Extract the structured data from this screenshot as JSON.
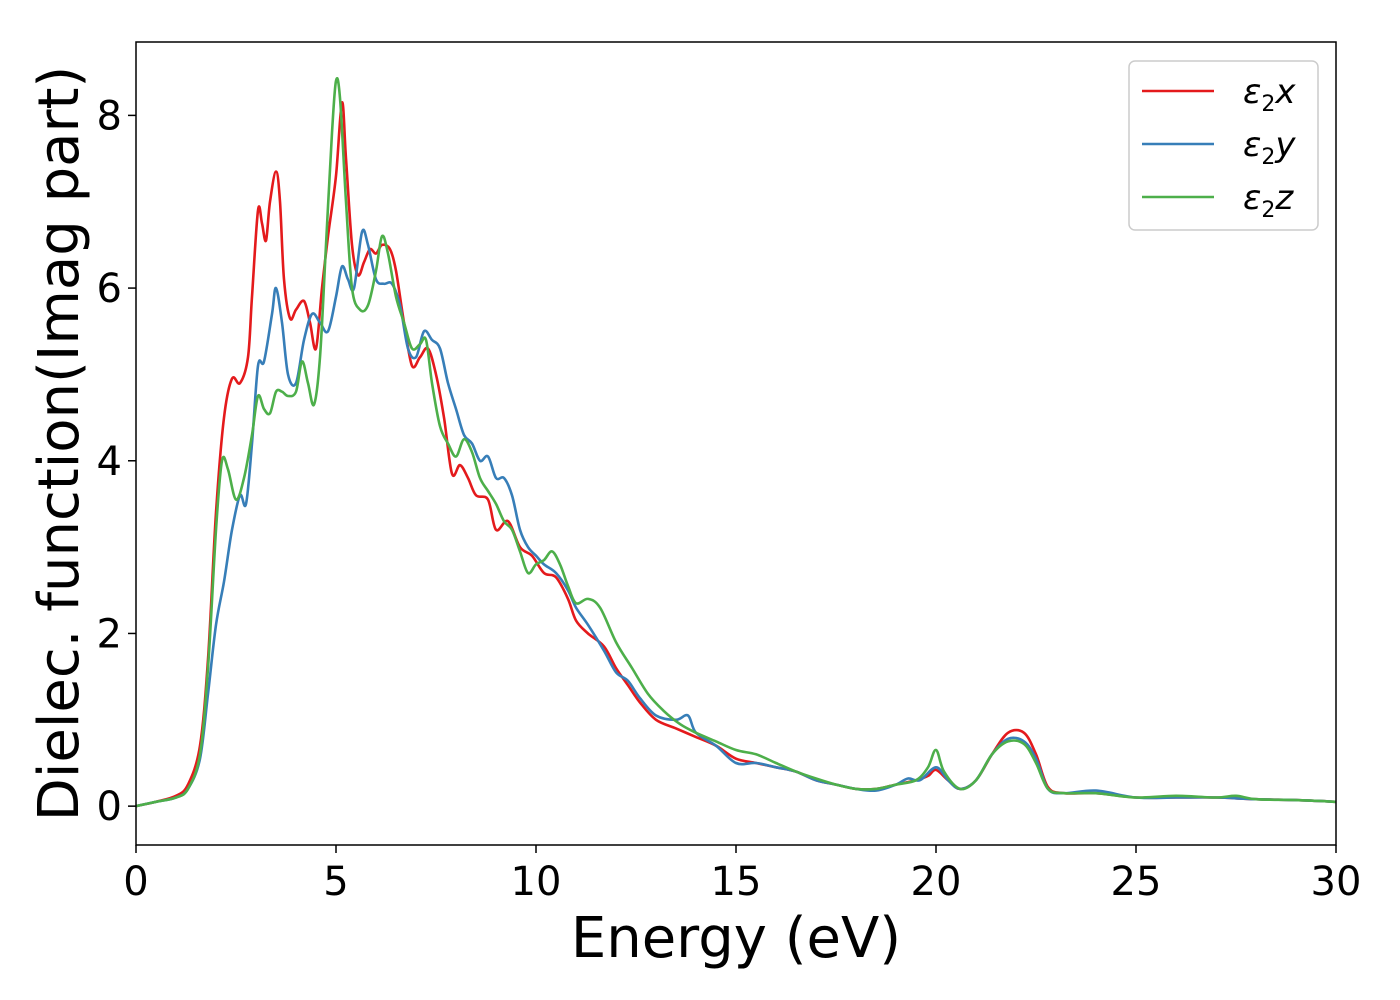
{
  "chart_data": {
    "type": "line",
    "title": "",
    "xlabel": "Energy (eV)",
    "ylabel": "Dielec. function(Imag part)",
    "xlim": [
      0,
      30
    ],
    "ylim": [
      -0.45,
      8.85
    ],
    "xticks": [
      0,
      5,
      10,
      15,
      20,
      25,
      30
    ],
    "yticks": [
      0,
      2,
      4,
      6,
      8
    ],
    "grid": false,
    "legend_position": "top-right",
    "series": [
      {
        "name": "ε₂x",
        "legend": {
          "base": "ε",
          "sub": "2",
          "var": "x"
        },
        "color": "#e41a1c",
        "points": [
          [
            0,
            0
          ],
          [
            0.5,
            0.05
          ],
          [
            1,
            0.12
          ],
          [
            1.3,
            0.25
          ],
          [
            1.6,
            0.7
          ],
          [
            1.8,
            1.7
          ],
          [
            2.0,
            3.4
          ],
          [
            2.2,
            4.5
          ],
          [
            2.4,
            4.95
          ],
          [
            2.6,
            4.9
          ],
          [
            2.8,
            5.2
          ],
          [
            2.9,
            5.9
          ],
          [
            3.05,
            6.9
          ],
          [
            3.15,
            6.75
          ],
          [
            3.25,
            6.55
          ],
          [
            3.35,
            7.0
          ],
          [
            3.5,
            7.35
          ],
          [
            3.6,
            7.0
          ],
          [
            3.7,
            6.1
          ],
          [
            3.85,
            5.65
          ],
          [
            4.0,
            5.75
          ],
          [
            4.2,
            5.85
          ],
          [
            4.35,
            5.6
          ],
          [
            4.5,
            5.3
          ],
          [
            4.65,
            6.0
          ],
          [
            4.8,
            6.6
          ],
          [
            5.0,
            7.3
          ],
          [
            5.15,
            8.15
          ],
          [
            5.25,
            7.5
          ],
          [
            5.4,
            6.5
          ],
          [
            5.55,
            6.15
          ],
          [
            5.7,
            6.3
          ],
          [
            5.85,
            6.45
          ],
          [
            6.0,
            6.4
          ],
          [
            6.15,
            6.5
          ],
          [
            6.35,
            6.45
          ],
          [
            6.5,
            6.2
          ],
          [
            6.7,
            5.6
          ],
          [
            6.9,
            5.1
          ],
          [
            7.1,
            5.2
          ],
          [
            7.3,
            5.3
          ],
          [
            7.5,
            5.0
          ],
          [
            7.7,
            4.5
          ],
          [
            7.9,
            3.85
          ],
          [
            8.1,
            3.95
          ],
          [
            8.3,
            3.8
          ],
          [
            8.5,
            3.6
          ],
          [
            8.8,
            3.55
          ],
          [
            9.0,
            3.2
          ],
          [
            9.3,
            3.3
          ],
          [
            9.6,
            3.0
          ],
          [
            9.9,
            2.9
          ],
          [
            10.2,
            2.7
          ],
          [
            10.5,
            2.65
          ],
          [
            10.8,
            2.4
          ],
          [
            11.0,
            2.15
          ],
          [
            11.3,
            2.0
          ],
          [
            11.7,
            1.85
          ],
          [
            12.0,
            1.6
          ],
          [
            12.3,
            1.4
          ],
          [
            12.6,
            1.2
          ],
          [
            13.0,
            1.0
          ],
          [
            13.5,
            0.9
          ],
          [
            14.0,
            0.8
          ],
          [
            14.5,
            0.7
          ],
          [
            15.0,
            0.55
          ],
          [
            15.5,
            0.5
          ],
          [
            16.0,
            0.45
          ],
          [
            16.5,
            0.4
          ],
          [
            17.0,
            0.3
          ],
          [
            17.5,
            0.25
          ],
          [
            18.0,
            0.2
          ],
          [
            18.5,
            0.2
          ],
          [
            19.0,
            0.25
          ],
          [
            19.5,
            0.3
          ],
          [
            19.8,
            0.35
          ],
          [
            20.0,
            0.42
          ],
          [
            20.3,
            0.3
          ],
          [
            20.6,
            0.2
          ],
          [
            21.0,
            0.3
          ],
          [
            21.4,
            0.6
          ],
          [
            21.8,
            0.85
          ],
          [
            22.2,
            0.85
          ],
          [
            22.5,
            0.6
          ],
          [
            22.8,
            0.22
          ],
          [
            23.2,
            0.15
          ],
          [
            24.0,
            0.15
          ],
          [
            25.0,
            0.1
          ],
          [
            26.0,
            0.1
          ],
          [
            27.0,
            0.1
          ],
          [
            28.0,
            0.08
          ],
          [
            29.0,
            0.07
          ],
          [
            30.0,
            0.05
          ]
        ]
      },
      {
        "name": "ε₂y",
        "legend": {
          "base": "ε",
          "sub": "2",
          "var": "y"
        },
        "color": "#377eb8",
        "points": [
          [
            0,
            0
          ],
          [
            0.5,
            0.05
          ],
          [
            1,
            0.1
          ],
          [
            1.3,
            0.2
          ],
          [
            1.6,
            0.55
          ],
          [
            1.8,
            1.3
          ],
          [
            2.0,
            2.1
          ],
          [
            2.2,
            2.6
          ],
          [
            2.4,
            3.2
          ],
          [
            2.6,
            3.6
          ],
          [
            2.75,
            3.5
          ],
          [
            2.9,
            4.2
          ],
          [
            3.05,
            5.1
          ],
          [
            3.2,
            5.15
          ],
          [
            3.4,
            5.7
          ],
          [
            3.5,
            6.0
          ],
          [
            3.65,
            5.6
          ],
          [
            3.8,
            5.0
          ],
          [
            4.0,
            4.9
          ],
          [
            4.2,
            5.4
          ],
          [
            4.4,
            5.7
          ],
          [
            4.6,
            5.6
          ],
          [
            4.8,
            5.5
          ],
          [
            5.0,
            5.9
          ],
          [
            5.15,
            6.25
          ],
          [
            5.3,
            6.1
          ],
          [
            5.45,
            6.0
          ],
          [
            5.65,
            6.65
          ],
          [
            5.8,
            6.5
          ],
          [
            6.0,
            6.1
          ],
          [
            6.2,
            6.05
          ],
          [
            6.4,
            6.05
          ],
          [
            6.6,
            5.8
          ],
          [
            6.8,
            5.3
          ],
          [
            7.0,
            5.2
          ],
          [
            7.2,
            5.5
          ],
          [
            7.4,
            5.4
          ],
          [
            7.6,
            5.3
          ],
          [
            7.8,
            4.9
          ],
          [
            8.0,
            4.6
          ],
          [
            8.2,
            4.3
          ],
          [
            8.4,
            4.2
          ],
          [
            8.6,
            4.0
          ],
          [
            8.8,
            4.05
          ],
          [
            9.0,
            3.8
          ],
          [
            9.2,
            3.8
          ],
          [
            9.4,
            3.6
          ],
          [
            9.6,
            3.2
          ],
          [
            9.8,
            3.0
          ],
          [
            10.0,
            2.9
          ],
          [
            10.2,
            2.8
          ],
          [
            10.5,
            2.7
          ],
          [
            10.8,
            2.5
          ],
          [
            11.0,
            2.3
          ],
          [
            11.3,
            2.1
          ],
          [
            11.7,
            1.8
          ],
          [
            12.0,
            1.55
          ],
          [
            12.3,
            1.45
          ],
          [
            12.6,
            1.25
          ],
          [
            13.0,
            1.05
          ],
          [
            13.5,
            1.0
          ],
          [
            13.8,
            1.05
          ],
          [
            14.0,
            0.85
          ],
          [
            14.5,
            0.7
          ],
          [
            15.0,
            0.5
          ],
          [
            15.5,
            0.5
          ],
          [
            16.0,
            0.45
          ],
          [
            16.5,
            0.4
          ],
          [
            17.0,
            0.3
          ],
          [
            17.5,
            0.25
          ],
          [
            18.0,
            0.2
          ],
          [
            18.5,
            0.18
          ],
          [
            19.0,
            0.25
          ],
          [
            19.3,
            0.32
          ],
          [
            19.6,
            0.3
          ],
          [
            20.0,
            0.45
          ],
          [
            20.3,
            0.3
          ],
          [
            20.6,
            0.2
          ],
          [
            21.0,
            0.3
          ],
          [
            21.4,
            0.6
          ],
          [
            21.8,
            0.78
          ],
          [
            22.2,
            0.75
          ],
          [
            22.5,
            0.55
          ],
          [
            22.8,
            0.2
          ],
          [
            23.2,
            0.15
          ],
          [
            24.0,
            0.18
          ],
          [
            25.0,
            0.1
          ],
          [
            26.0,
            0.1
          ],
          [
            27.0,
            0.1
          ],
          [
            28.0,
            0.08
          ],
          [
            29.0,
            0.07
          ],
          [
            30.0,
            0.05
          ]
        ]
      },
      {
        "name": "ε₂z",
        "legend": {
          "base": "ε",
          "sub": "2",
          "var": "z"
        },
        "color": "#4daf4a",
        "points": [
          [
            0,
            0
          ],
          [
            0.5,
            0.05
          ],
          [
            1,
            0.1
          ],
          [
            1.3,
            0.2
          ],
          [
            1.6,
            0.6
          ],
          [
            1.8,
            1.6
          ],
          [
            2.0,
            3.2
          ],
          [
            2.15,
            4.0
          ],
          [
            2.3,
            3.9
          ],
          [
            2.5,
            3.55
          ],
          [
            2.7,
            3.8
          ],
          [
            2.9,
            4.3
          ],
          [
            3.05,
            4.75
          ],
          [
            3.2,
            4.6
          ],
          [
            3.35,
            4.55
          ],
          [
            3.5,
            4.8
          ],
          [
            3.65,
            4.8
          ],
          [
            3.8,
            4.75
          ],
          [
            4.0,
            4.8
          ],
          [
            4.15,
            5.15
          ],
          [
            4.3,
            4.9
          ],
          [
            4.45,
            4.65
          ],
          [
            4.6,
            5.2
          ],
          [
            4.75,
            6.5
          ],
          [
            4.9,
            7.8
          ],
          [
            5.0,
            8.4
          ],
          [
            5.1,
            8.2
          ],
          [
            5.25,
            7.0
          ],
          [
            5.4,
            6.0
          ],
          [
            5.6,
            5.75
          ],
          [
            5.8,
            5.8
          ],
          [
            6.0,
            6.2
          ],
          [
            6.15,
            6.6
          ],
          [
            6.3,
            6.4
          ],
          [
            6.5,
            5.9
          ],
          [
            6.7,
            5.6
          ],
          [
            6.9,
            5.3
          ],
          [
            7.1,
            5.35
          ],
          [
            7.25,
            5.4
          ],
          [
            7.4,
            4.9
          ],
          [
            7.6,
            4.4
          ],
          [
            7.8,
            4.2
          ],
          [
            8.0,
            4.05
          ],
          [
            8.2,
            4.25
          ],
          [
            8.4,
            4.1
          ],
          [
            8.6,
            3.8
          ],
          [
            8.8,
            3.65
          ],
          [
            9.0,
            3.5
          ],
          [
            9.2,
            3.3
          ],
          [
            9.4,
            3.2
          ],
          [
            9.6,
            2.95
          ],
          [
            9.8,
            2.7
          ],
          [
            10.0,
            2.8
          ],
          [
            10.2,
            2.85
          ],
          [
            10.4,
            2.95
          ],
          [
            10.6,
            2.8
          ],
          [
            10.8,
            2.55
          ],
          [
            11.0,
            2.35
          ],
          [
            11.3,
            2.4
          ],
          [
            11.6,
            2.3
          ],
          [
            12.0,
            1.9
          ],
          [
            12.4,
            1.6
          ],
          [
            12.8,
            1.3
          ],
          [
            13.2,
            1.1
          ],
          [
            13.6,
            0.95
          ],
          [
            14.0,
            0.85
          ],
          [
            14.5,
            0.75
          ],
          [
            15.0,
            0.65
          ],
          [
            15.5,
            0.6
          ],
          [
            16.0,
            0.5
          ],
          [
            16.5,
            0.4
          ],
          [
            17.0,
            0.32
          ],
          [
            17.5,
            0.25
          ],
          [
            18.0,
            0.2
          ],
          [
            18.5,
            0.2
          ],
          [
            19.0,
            0.25
          ],
          [
            19.5,
            0.3
          ],
          [
            19.8,
            0.45
          ],
          [
            20.0,
            0.65
          ],
          [
            20.2,
            0.4
          ],
          [
            20.6,
            0.2
          ],
          [
            21.0,
            0.3
          ],
          [
            21.4,
            0.6
          ],
          [
            21.8,
            0.75
          ],
          [
            22.2,
            0.72
          ],
          [
            22.5,
            0.5
          ],
          [
            22.8,
            0.2
          ],
          [
            23.2,
            0.15
          ],
          [
            24.0,
            0.15
          ],
          [
            25.0,
            0.1
          ],
          [
            26.0,
            0.12
          ],
          [
            27.0,
            0.1
          ],
          [
            27.5,
            0.12
          ],
          [
            28.0,
            0.08
          ],
          [
            29.0,
            0.07
          ],
          [
            30.0,
            0.05
          ]
        ]
      }
    ]
  }
}
